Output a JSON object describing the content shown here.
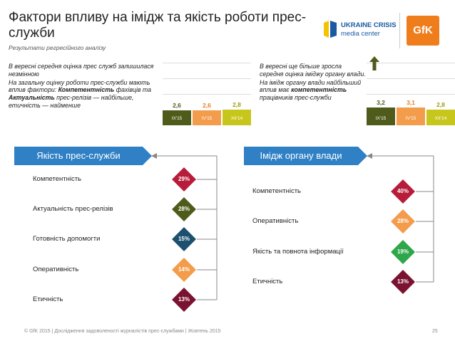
{
  "title": "Фактори впливу на імідж та якість роботи прес-служби",
  "subtitle": "Результати регресійного аналізу",
  "logos": {
    "ukraine_line1": "UKRAINE CRISIS",
    "ukraine_line2": "media center",
    "gfk": "GfK"
  },
  "left_note": {
    "p1": "В вересні середня оцінка прес служб залишилася незмінною",
    "p2_a": "На загальну оцінку роботи прес-служби мають вплив фактори: ",
    "p2_b": "Компетентність",
    "p2_c": " фахівців та ",
    "p2_d": "Актуальність",
    "p2_e": " прес-релізів — найбільше, етичність — найменше"
  },
  "right_note": {
    "p1": "В вересні ще більше зросла середня оцінка іміджу органу влади.",
    "p2_a": "На імідж органу влади найбільший вплив має ",
    "p2_b": "компетентність",
    "p2_c": " працівників прес-служби"
  },
  "chart_data": [
    {
      "type": "bar",
      "categories": [
        "IX'15",
        "IV'15",
        "XII'14"
      ],
      "values": [
        2.6,
        2.6,
        2.8
      ],
      "value_labels": [
        "2,6",
        "2,6",
        "2,8"
      ],
      "colors": [
        "#4e5b1b",
        "#f39c4b",
        "#c7c61c"
      ],
      "ylim": [
        0,
        4
      ]
    },
    {
      "type": "bar",
      "categories": [
        "IX'15",
        "IV'15",
        "XII'14"
      ],
      "values": [
        3.2,
        3.1,
        2.8
      ],
      "value_labels": [
        "3,2",
        "3,1",
        "2,8"
      ],
      "colors": [
        "#4e5b1b",
        "#f39c4b",
        "#c7c61c"
      ],
      "ylim": [
        0,
        4
      ]
    },
    {
      "type": "bar",
      "title": "Якість прес-служби",
      "categories": [
        "Компетентність",
        "Актуальність прес-релізів",
        "Готовність допомогти",
        "Оперативність",
        "Етичність"
      ],
      "values": [
        29,
        28,
        15,
        14,
        13
      ],
      "value_labels": [
        "29%",
        "28%",
        "15%",
        "14%",
        "13%"
      ],
      "colors": [
        "#b71c3a",
        "#4e5b1b",
        "#1d4f6e",
        "#f39c4b",
        "#7a1230"
      ]
    },
    {
      "type": "bar",
      "title": "Імідж органу влади",
      "categories": [
        "Компетентність",
        "Оперативність",
        "Якість та повнота інформації",
        "Етичність"
      ],
      "values": [
        40,
        28,
        19,
        13
      ],
      "value_labels": [
        "40%",
        "28%",
        "19%",
        "13%"
      ],
      "colors": [
        "#b71c3a",
        "#f39c4b",
        "#2ea64a",
        "#7a1230"
      ]
    }
  ],
  "footer": "© GfK 2015 | Дослідження задоволеності журналістів прес-службами | Жовтень 2015",
  "page_number": "25"
}
